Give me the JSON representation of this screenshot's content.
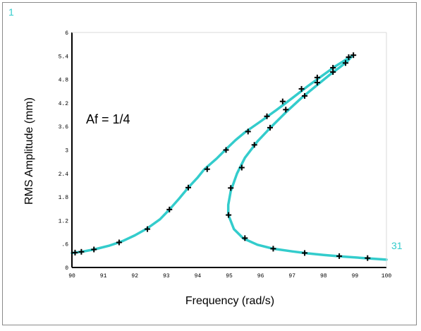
{
  "chart_data": {
    "type": "scatter",
    "title": "",
    "xlabel": "Frequency (rad/s)",
    "ylabel": "RMS Amplitude (mm)",
    "xlim": [
      90,
      100
    ],
    "ylim": [
      0,
      6
    ],
    "x_ticks": [
      "90",
      "91",
      "92",
      "93",
      "94",
      "95",
      "96",
      "97",
      "98",
      "99",
      "100"
    ],
    "y_ticks": [
      "0",
      ".6",
      "1.2",
      "1.8",
      "2.4",
      "3",
      "3.6",
      "4.2",
      "4.8",
      "5.4",
      "6"
    ],
    "annotation": "Af = 1/4",
    "corner_labels": {
      "top_left": "1",
      "right": "31"
    },
    "line_color": "#33cccc",
    "marker_color": "#000000",
    "series": [
      {
        "curve": [
          [
            90.0,
            0.37
          ],
          [
            90.3,
            0.4
          ],
          [
            90.7,
            0.46
          ],
          [
            91.2,
            0.56
          ],
          [
            91.6,
            0.67
          ],
          [
            92.0,
            0.82
          ],
          [
            92.4,
            1.0
          ],
          [
            92.8,
            1.23
          ],
          [
            93.1,
            1.48
          ],
          [
            93.4,
            1.75
          ],
          [
            93.7,
            2.04
          ],
          [
            94.0,
            2.3
          ],
          [
            94.2,
            2.5
          ],
          [
            94.6,
            2.78
          ],
          [
            94.85,
            2.98
          ],
          [
            95.2,
            3.25
          ],
          [
            95.5,
            3.45
          ],
          [
            96.0,
            3.73
          ],
          [
            96.5,
            4.02
          ],
          [
            97.0,
            4.32
          ],
          [
            97.5,
            4.63
          ],
          [
            98.0,
            4.92
          ],
          [
            98.4,
            5.15
          ],
          [
            98.7,
            5.3
          ],
          [
            98.92,
            5.41
          ],
          [
            98.75,
            5.26
          ],
          [
            98.5,
            5.1
          ],
          [
            98.2,
            4.92
          ],
          [
            97.8,
            4.66
          ],
          [
            97.3,
            4.33
          ],
          [
            96.8,
            3.96
          ],
          [
            96.3,
            3.56
          ],
          [
            95.9,
            3.22
          ],
          [
            95.5,
            2.8
          ],
          [
            95.25,
            2.4
          ],
          [
            95.05,
            1.95
          ],
          [
            94.97,
            1.6
          ],
          [
            94.97,
            1.35
          ],
          [
            95.15,
            0.98
          ],
          [
            95.45,
            0.74
          ],
          [
            95.9,
            0.58
          ],
          [
            96.4,
            0.48
          ],
          [
            97.0,
            0.41
          ],
          [
            97.5,
            0.36
          ],
          [
            98.0,
            0.32
          ],
          [
            98.6,
            0.28
          ],
          [
            99.3,
            0.24
          ],
          [
            100.0,
            0.2
          ]
        ],
        "points": [
          [
            90.1,
            0.38
          ],
          [
            90.3,
            0.4
          ],
          [
            90.7,
            0.46
          ],
          [
            91.5,
            0.64
          ],
          [
            92.4,
            0.98
          ],
          [
            93.1,
            1.48
          ],
          [
            93.7,
            2.04
          ],
          [
            94.3,
            2.51
          ],
          [
            94.9,
            3.0
          ],
          [
            95.6,
            3.47
          ],
          [
            96.2,
            3.86
          ],
          [
            96.7,
            4.24
          ],
          [
            97.3,
            4.56
          ],
          [
            97.8,
            4.85
          ],
          [
            98.3,
            5.1
          ],
          [
            98.8,
            5.37
          ],
          [
            98.95,
            5.42
          ],
          [
            98.7,
            5.22
          ],
          [
            98.3,
            4.99
          ],
          [
            97.8,
            4.72
          ],
          [
            97.4,
            4.38
          ],
          [
            96.8,
            4.03
          ],
          [
            96.3,
            3.57
          ],
          [
            95.8,
            3.13
          ],
          [
            95.4,
            2.55
          ],
          [
            95.05,
            2.03
          ],
          [
            94.98,
            1.34
          ],
          [
            95.5,
            0.75
          ],
          [
            96.4,
            0.48
          ],
          [
            97.4,
            0.37
          ],
          [
            98.5,
            0.29
          ],
          [
            99.4,
            0.24
          ]
        ]
      }
    ]
  }
}
